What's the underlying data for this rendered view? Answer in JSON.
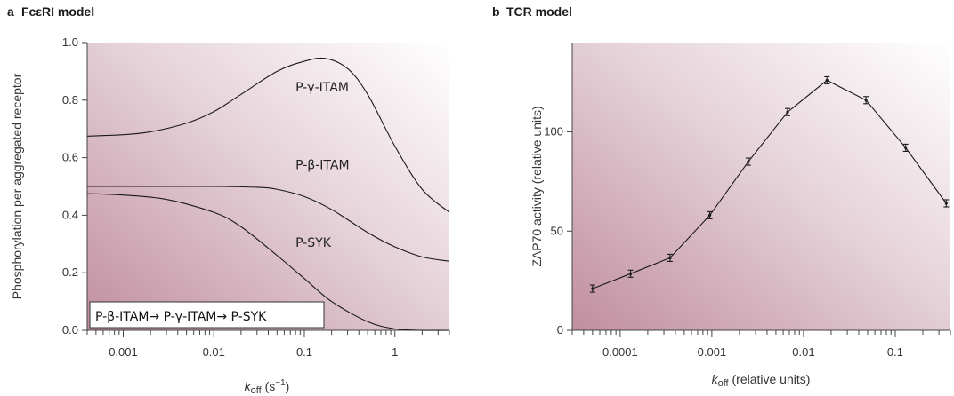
{
  "chart_data": [
    {
      "panel": "a",
      "title": "FcεRI model",
      "type": "line",
      "xscale": "log",
      "xlim": [
        0.0004,
        4
      ],
      "ylim": [
        0,
        1.0
      ],
      "xticks": [
        0.001,
        0.01,
        0.1,
        1
      ],
      "xtick_labels": [
        "0.001",
        "0.01",
        "0.1",
        "1"
      ],
      "yticks": [
        0,
        0.2,
        0.4,
        0.6,
        0.8,
        1.0
      ],
      "ytick_labels": [
        "0.0",
        "0.2",
        "0.4",
        "0.6",
        "0.8",
        "1.0"
      ],
      "ylabel": "Phosphorylation per aggregated receptor",
      "xlabel_main": "k",
      "xlabel_sub": "off",
      "xlabel_units_open": " (s",
      "xlabel_units_sup": "−1",
      "xlabel_units_close": ")",
      "series": [
        {
          "name": "P-γ-ITAM",
          "x": [
            0.0004,
            0.001,
            0.002,
            0.005,
            0.01,
            0.02,
            0.05,
            0.1,
            0.17,
            0.3,
            0.5,
            1,
            2,
            4
          ],
          "y": [
            0.675,
            0.68,
            0.69,
            0.72,
            0.76,
            0.82,
            0.9,
            0.935,
            0.945,
            0.91,
            0.82,
            0.64,
            0.49,
            0.41
          ]
        },
        {
          "name": "P-β-ITAM",
          "x": [
            0.0004,
            0.001,
            0.01,
            0.03,
            0.05,
            0.1,
            0.2,
            0.5,
            1,
            2,
            4
          ],
          "y": [
            0.5,
            0.5,
            0.5,
            0.497,
            0.49,
            0.465,
            0.42,
            0.34,
            0.29,
            0.255,
            0.24
          ]
        },
        {
          "name": "P-SYK",
          "x": [
            0.0004,
            0.001,
            0.003,
            0.01,
            0.02,
            0.05,
            0.1,
            0.2,
            0.5,
            1,
            2,
            4
          ],
          "y": [
            0.475,
            0.47,
            0.455,
            0.41,
            0.36,
            0.26,
            0.18,
            0.1,
            0.03,
            0.005,
            0.0,
            0.0
          ]
        }
      ],
      "series_label_positions": [
        {
          "name": "P-γ-ITAM",
          "x": 0.08,
          "y": 0.83
        },
        {
          "name": "P-β-ITAM",
          "x": 0.08,
          "y": 0.56
        },
        {
          "name": "P-SYK",
          "x": 0.08,
          "y": 0.29
        }
      ],
      "annotation": "P-β-ITAM→ P-γ-ITAM→ P-SYK"
    },
    {
      "panel": "b",
      "title": "TCR model",
      "type": "line",
      "xscale": "log",
      "xlim": [
        3e-05,
        0.4
      ],
      "ylim": [
        0,
        145
      ],
      "xticks": [
        0.0001,
        0.001,
        0.01,
        0.1
      ],
      "xtick_labels": [
        "0.0001",
        "0.001",
        "0.01",
        "0.1"
      ],
      "yticks": [
        0,
        50,
        100
      ],
      "ytick_labels": [
        "0",
        "50",
        "100"
      ],
      "ylabel": "ZAP70 activity (relative units)",
      "xlabel_main": "k",
      "xlabel_sub": "off",
      "xlabel_units": " (relative units)",
      "series": [
        {
          "name": "",
          "x": [
            5e-05,
            0.00013,
            0.00035,
            0.00095,
            0.0025,
            0.0067,
            0.018,
            0.048,
            0.13,
            0.36
          ],
          "y": [
            21,
            28.5,
            36.5,
            58,
            85,
            110,
            126,
            116,
            92,
            64
          ],
          "error": [
            1.8,
            1.8,
            1.8,
            1.8,
            1.8,
            1.8,
            1.8,
            1.8,
            1.8,
            1.8
          ]
        }
      ]
    }
  ]
}
